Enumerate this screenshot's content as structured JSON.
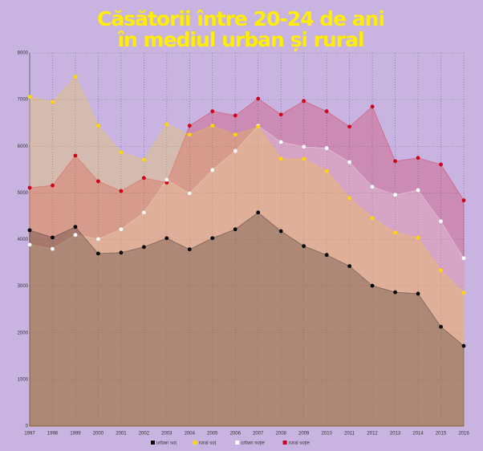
{
  "chart_data": {
    "type": "area",
    "title": [
      "Căsătorii între 20-24 de ani",
      "în mediul urban și rural"
    ],
    "categories": [
      "1997",
      "1998",
      "1999",
      "2000",
      "2001",
      "2002",
      "2003",
      "2004",
      "2005",
      "2006",
      "2007",
      "2008",
      "2009",
      "2010",
      "2011",
      "2012",
      "2013",
      "2014",
      "2015",
      "2016"
    ],
    "series": [
      {
        "name": "urban soț",
        "color": "#000000",
        "values": [
          4200,
          4045,
          4270,
          3700,
          3720,
          3840,
          4030,
          3790,
          4030,
          4220,
          4580,
          4180,
          3860,
          3670,
          3430,
          3010,
          2870,
          2840,
          2130,
          1720
        ]
      },
      {
        "name": "rural soț",
        "color": "#ffd700",
        "values": [
          7060,
          6950,
          7490,
          6440,
          5870,
          5710,
          6470,
          6250,
          6440,
          6250,
          6420,
          5730,
          5730,
          5470,
          4890,
          4460,
          4150,
          4040,
          3340,
          2860
        ]
      },
      {
        "name": "urban soție",
        "color": "#ffffff",
        "values": [
          3890,
          3800,
          4100,
          4010,
          4220,
          4580,
          5280,
          4990,
          5490,
          5900,
          6440,
          6090,
          5990,
          5960,
          5660,
          5130,
          4960,
          5060,
          4390,
          3600
        ]
      },
      {
        "name": "rural soție",
        "color": "#d0021b",
        "values": [
          5110,
          5160,
          5800,
          5250,
          5040,
          5320,
          5220,
          6440,
          6750,
          6660,
          7020,
          6680,
          6970,
          6750,
          6420,
          6850,
          5680,
          5750,
          5610,
          4840
        ]
      }
    ],
    "ylim": [
      0,
      8000
    ],
    "yticks": [
      0,
      1000,
      2000,
      3000,
      4000,
      5000,
      6000,
      7000,
      8000
    ],
    "grid": true,
    "legend": "bottom"
  }
}
